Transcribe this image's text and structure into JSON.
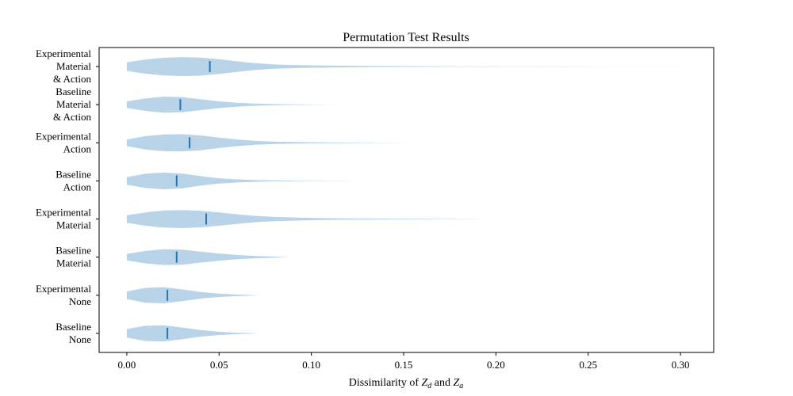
{
  "chart_data": {
    "type": "violin",
    "orientation": "horizontal",
    "title": "Permutation Test Results",
    "xlabel": {
      "prefix": "Dissimilarity of ",
      "var1": "Z",
      "sub1": "d",
      "mid": " and ",
      "var2": "Z",
      "sub2": "a"
    },
    "ylabel": "",
    "xlim": [
      -0.015,
      0.318
    ],
    "xticks": [
      0.0,
      0.05,
      0.1,
      0.15,
      0.2,
      0.25,
      0.3
    ],
    "xtick_labels": [
      "0.00",
      "0.05",
      "0.10",
      "0.15",
      "0.20",
      "0.25",
      "0.30"
    ],
    "grid": false,
    "fill_color": "#b9d4e8",
    "median_color": "#1f77b4",
    "series": [
      {
        "label_lines": [
          "Experimental",
          "Material",
          "& Action"
        ],
        "median": 0.045,
        "profile": [
          [
            0.0,
            0.45
          ],
          [
            0.01,
            0.75
          ],
          [
            0.02,
            0.93
          ],
          [
            0.03,
            1.0
          ],
          [
            0.04,
            0.95
          ],
          [
            0.05,
            0.78
          ],
          [
            0.06,
            0.55
          ],
          [
            0.07,
            0.35
          ],
          [
            0.08,
            0.22
          ],
          [
            0.1,
            0.12
          ],
          [
            0.13,
            0.06
          ],
          [
            0.17,
            0.03
          ],
          [
            0.22,
            0.012
          ],
          [
            0.27,
            0.005
          ],
          [
            0.3,
            0.003
          ],
          [
            0.303,
            0.0
          ]
        ]
      },
      {
        "label_lines": [
          "Baseline",
          "Material",
          "& Action"
        ],
        "median": 0.029,
        "profile": [
          [
            0.0,
            0.35
          ],
          [
            0.01,
            0.65
          ],
          [
            0.02,
            0.85
          ],
          [
            0.03,
            0.8
          ],
          [
            0.04,
            0.58
          ],
          [
            0.05,
            0.35
          ],
          [
            0.06,
            0.2
          ],
          [
            0.07,
            0.11
          ],
          [
            0.08,
            0.06
          ],
          [
            0.09,
            0.03
          ],
          [
            0.1,
            0.015
          ],
          [
            0.11,
            0.007
          ],
          [
            0.118,
            0.0
          ]
        ]
      },
      {
        "label_lines": [
          "Experimental",
          "Action"
        ],
        "median": 0.034,
        "profile": [
          [
            0.0,
            0.35
          ],
          [
            0.01,
            0.7
          ],
          [
            0.02,
            0.88
          ],
          [
            0.03,
            0.9
          ],
          [
            0.04,
            0.78
          ],
          [
            0.05,
            0.55
          ],
          [
            0.06,
            0.35
          ],
          [
            0.07,
            0.2
          ],
          [
            0.08,
            0.12
          ],
          [
            0.1,
            0.06
          ],
          [
            0.12,
            0.03
          ],
          [
            0.14,
            0.012
          ],
          [
            0.154,
            0.0
          ]
        ]
      },
      {
        "label_lines": [
          "Baseline",
          "Action"
        ],
        "median": 0.027,
        "profile": [
          [
            0.0,
            0.4
          ],
          [
            0.01,
            0.75
          ],
          [
            0.02,
            0.88
          ],
          [
            0.03,
            0.78
          ],
          [
            0.04,
            0.5
          ],
          [
            0.05,
            0.28
          ],
          [
            0.06,
            0.16
          ],
          [
            0.07,
            0.09
          ],
          [
            0.08,
            0.05
          ],
          [
            0.1,
            0.02
          ],
          [
            0.115,
            0.008
          ],
          [
            0.125,
            0.0
          ]
        ]
      },
      {
        "label_lines": [
          "Experimental",
          "Material"
        ],
        "median": 0.043,
        "profile": [
          [
            0.0,
            0.4
          ],
          [
            0.01,
            0.7
          ],
          [
            0.02,
            0.9
          ],
          [
            0.03,
            0.95
          ],
          [
            0.04,
            0.88
          ],
          [
            0.05,
            0.7
          ],
          [
            0.06,
            0.5
          ],
          [
            0.07,
            0.33
          ],
          [
            0.08,
            0.22
          ],
          [
            0.1,
            0.12
          ],
          [
            0.12,
            0.07
          ],
          [
            0.15,
            0.035
          ],
          [
            0.18,
            0.015
          ],
          [
            0.197,
            0.0
          ]
        ]
      },
      {
        "label_lines": [
          "Baseline",
          "Material"
        ],
        "median": 0.027,
        "profile": [
          [
            0.0,
            0.35
          ],
          [
            0.01,
            0.65
          ],
          [
            0.02,
            0.83
          ],
          [
            0.03,
            0.8
          ],
          [
            0.04,
            0.58
          ],
          [
            0.05,
            0.38
          ],
          [
            0.06,
            0.22
          ],
          [
            0.07,
            0.12
          ],
          [
            0.08,
            0.06
          ],
          [
            0.088,
            0.0
          ]
        ]
      },
      {
        "label_lines": [
          "Experimental",
          "None"
        ],
        "median": 0.022,
        "profile": [
          [
            0.0,
            0.4
          ],
          [
            0.01,
            0.78
          ],
          [
            0.02,
            0.85
          ],
          [
            0.03,
            0.62
          ],
          [
            0.04,
            0.35
          ],
          [
            0.05,
            0.18
          ],
          [
            0.06,
            0.08
          ],
          [
            0.068,
            0.03
          ],
          [
            0.071,
            0.0
          ]
        ]
      },
      {
        "label_lines": [
          "Baseline",
          "None"
        ],
        "median": 0.022,
        "profile": [
          [
            0.0,
            0.45
          ],
          [
            0.01,
            0.8
          ],
          [
            0.02,
            0.85
          ],
          [
            0.03,
            0.62
          ],
          [
            0.04,
            0.35
          ],
          [
            0.05,
            0.17
          ],
          [
            0.06,
            0.07
          ],
          [
            0.068,
            0.025
          ],
          [
            0.071,
            0.0
          ]
        ]
      }
    ]
  }
}
